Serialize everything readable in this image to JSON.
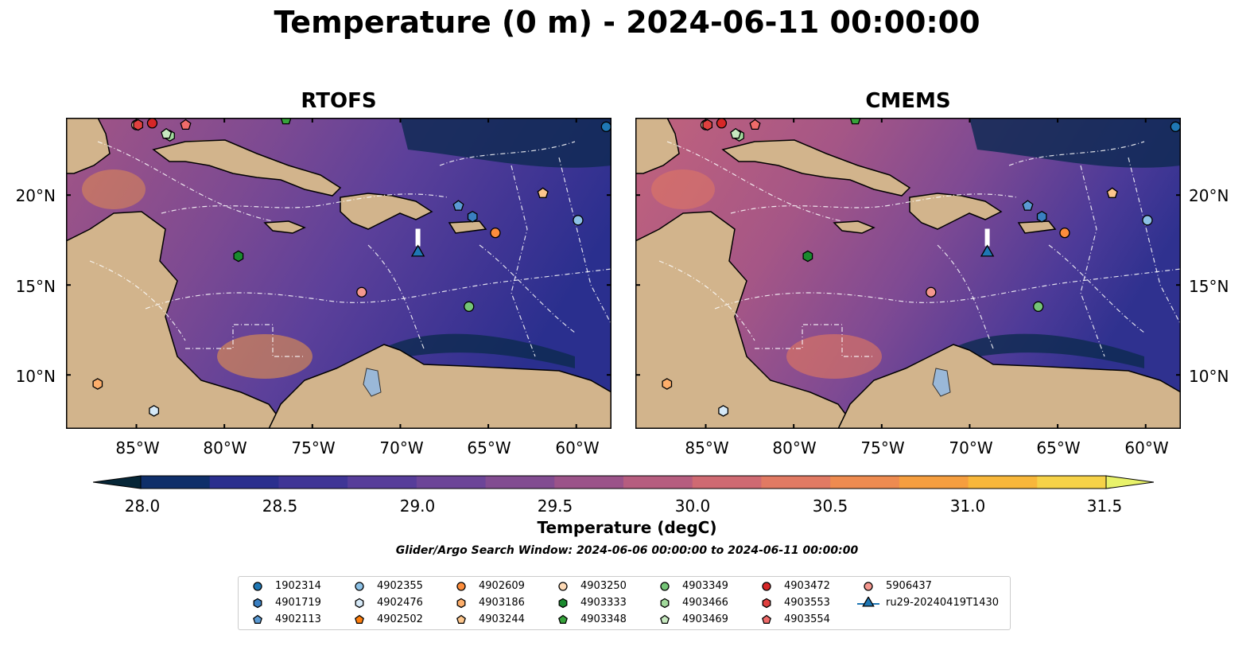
{
  "title": "Temperature (0 m) - 2024-06-11 00:00:00",
  "panels": [
    {
      "title": "RTOFS"
    },
    {
      "title": "CMEMS"
    }
  ],
  "map_extent": {
    "lon": [
      -89,
      -58
    ],
    "lat": [
      7,
      24.3
    ]
  },
  "lat_ticks": [
    "20°N",
    "15°N",
    "10°N"
  ],
  "lon_ticks": [
    "85°W",
    "80°W",
    "75°W",
    "70°W",
    "65°W",
    "60°W"
  ],
  "colorbar": {
    "label": "Temperature (degC)",
    "ticks": [
      "28.0",
      "28.5",
      "29.0",
      "29.5",
      "30.0",
      "30.5",
      "31.0",
      "31.5"
    ],
    "range": [
      28.0,
      31.5
    ],
    "colors": [
      "#062637",
      "#0f2f6a",
      "#2a2f8e",
      "#3f3596",
      "#573d9a",
      "#6c4598",
      "#824c91",
      "#9b5389",
      "#b65d7f",
      "#cf6a72",
      "#e17a63",
      "#ee8b50",
      "#f59e3f",
      "#f8b73a",
      "#f6d248",
      "#e8f26a"
    ]
  },
  "search_window": "Glider/Argo Search Window: 2024-06-06 00:00:00 to 2024-06-11 00:00:00",
  "legend": [
    {
      "label": "1902314",
      "marker": "circle",
      "color": "#1f77b4"
    },
    {
      "label": "4901719",
      "marker": "hexagon",
      "color": "#3a7fc1"
    },
    {
      "label": "4902113",
      "marker": "pentagon",
      "color": "#5b9ad3"
    },
    {
      "label": "4902355",
      "marker": "circle",
      "color": "#8cc1e6"
    },
    {
      "label": "4902476",
      "marker": "hexagon",
      "color": "#d6e9f7"
    },
    {
      "label": "4902502",
      "marker": "pentagon",
      "color": "#ff7f0e"
    },
    {
      "label": "4902609",
      "marker": "circle",
      "color": "#fd8d3c"
    },
    {
      "label": "4903186",
      "marker": "hexagon",
      "color": "#fdae6b"
    },
    {
      "label": "4903244",
      "marker": "pentagon",
      "color": "#fdc68c"
    },
    {
      "label": "4903250",
      "marker": "circle",
      "color": "#fdd9b5"
    },
    {
      "label": "4903333",
      "marker": "hexagon",
      "color": "#1a8a2e"
    },
    {
      "label": "4903348",
      "marker": "pentagon",
      "color": "#37a33b"
    },
    {
      "label": "4903349",
      "marker": "circle",
      "color": "#74c476"
    },
    {
      "label": "4903466",
      "marker": "hexagon",
      "color": "#a1d99b"
    },
    {
      "label": "4903469",
      "marker": "pentagon",
      "color": "#c7e9c0"
    },
    {
      "label": "4903472",
      "marker": "circle",
      "color": "#d62728"
    },
    {
      "label": "4903553",
      "marker": "hexagon",
      "color": "#e0403f"
    },
    {
      "label": "4903554",
      "marker": "pentagon",
      "color": "#ef6b6a"
    },
    {
      "label": "5906437",
      "marker": "circle",
      "color": "#f4978e"
    },
    {
      "label": "ru29-20240419T1430",
      "marker": "triangle-line",
      "color": "#1f77b4"
    }
  ],
  "platforms": [
    {
      "id": "1902314",
      "lon": -58.3,
      "lat": 23.8
    },
    {
      "id": "4901719",
      "lon": -65.9,
      "lat": 18.8
    },
    {
      "id": "4902113",
      "lon": -66.7,
      "lat": 19.4
    },
    {
      "id": "4902355",
      "lon": -59.9,
      "lat": 18.6
    },
    {
      "id": "4902476",
      "lon": -84.0,
      "lat": 8.0
    },
    {
      "id": "4902502",
      "lon": -61.9,
      "lat": 20.1
    },
    {
      "id": "4902609",
      "lon": -64.6,
      "lat": 17.9
    },
    {
      "id": "4903186",
      "lon": -87.2,
      "lat": 9.5
    },
    {
      "id": "4903244",
      "lon": -61.9,
      "lat": 20.1
    },
    {
      "id": "4903250",
      "lon": -85.0,
      "lat": 23.9
    },
    {
      "id": "4903333",
      "lon": -79.2,
      "lat": 16.6
    },
    {
      "id": "4903348",
      "lon": -76.5,
      "lat": 24.2
    },
    {
      "id": "4903349",
      "lon": -66.1,
      "lat": 13.8
    },
    {
      "id": "4903466",
      "lon": -83.1,
      "lat": 23.3
    },
    {
      "id": "4903469",
      "lon": -83.3,
      "lat": 23.4
    },
    {
      "id": "4903472",
      "lon": -84.1,
      "lat": 24.0
    },
    {
      "id": "4903553",
      "lon": -84.9,
      "lat": 23.9
    },
    {
      "id": "4903554",
      "lon": -82.2,
      "lat": 23.9
    },
    {
      "id": "5906437",
      "lon": -72.2,
      "lat": 14.6
    },
    {
      "id": "ru29-20240419T1430",
      "lon": -69.0,
      "lat": 16.8
    }
  ]
}
